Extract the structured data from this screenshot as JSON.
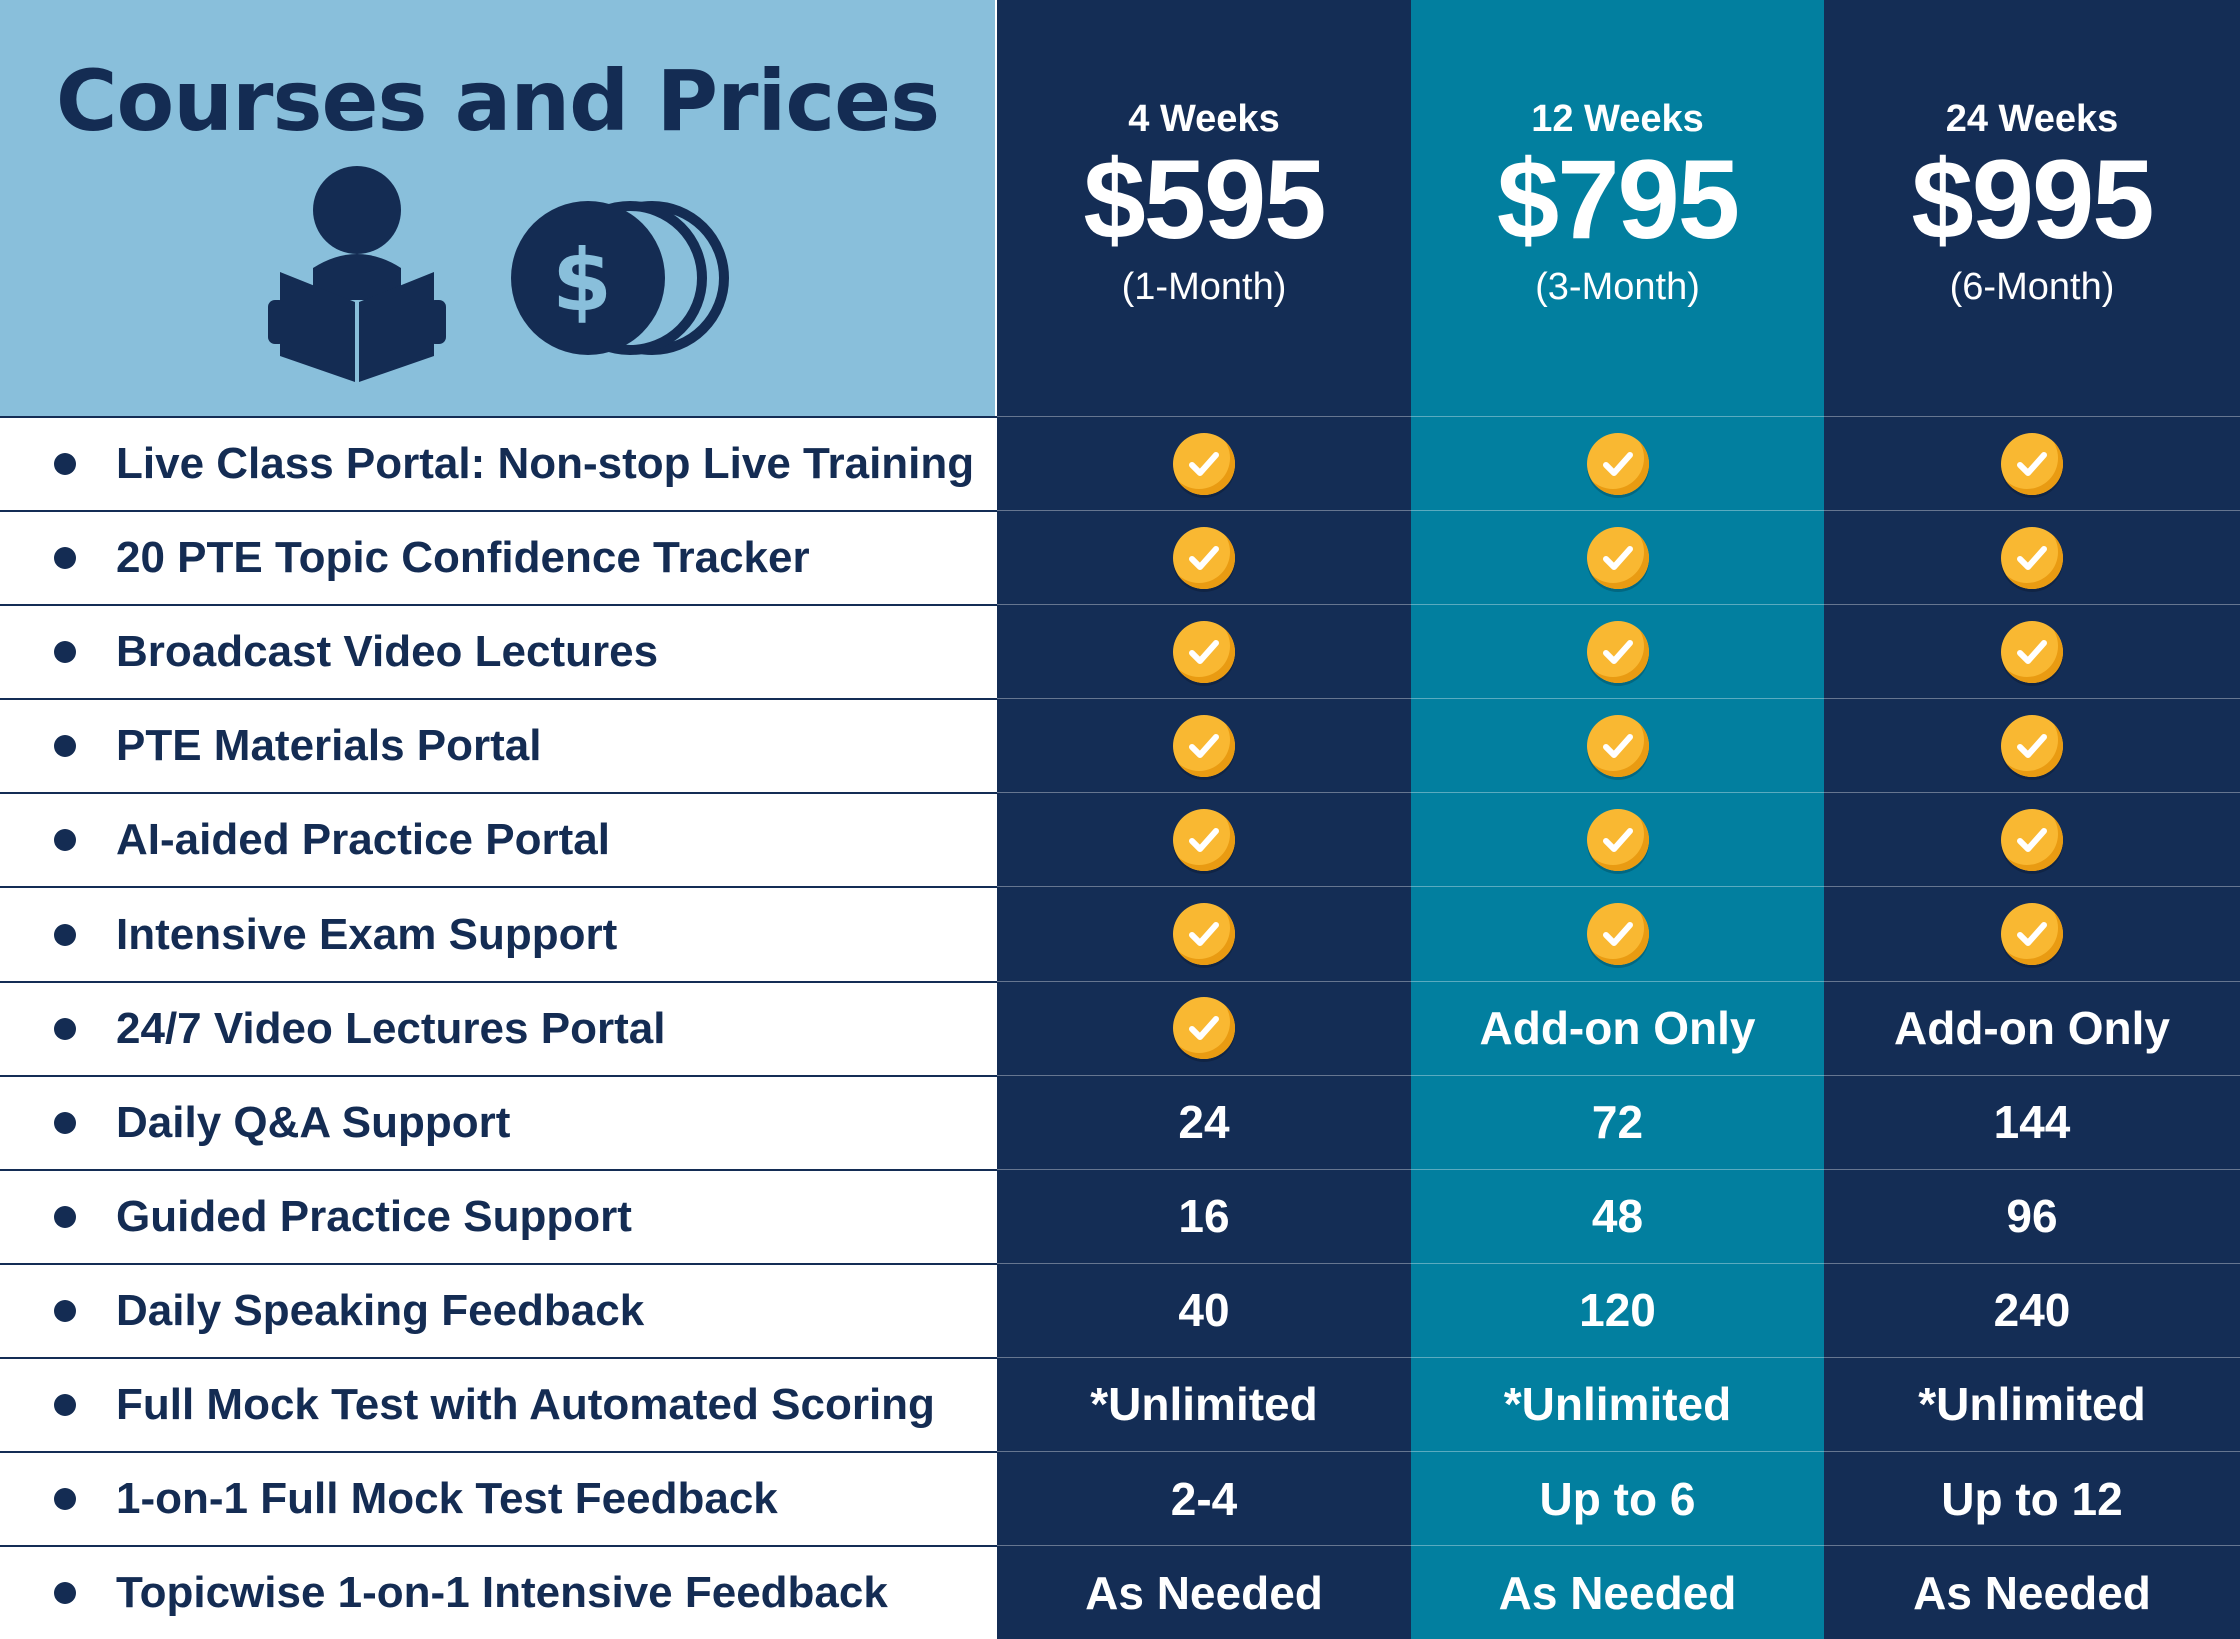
{
  "header": {
    "title": "Courses and Prices",
    "icons": [
      "person-reading-book-icon",
      "dollar-coins-icon"
    ],
    "colors": {
      "hero_bg": "#89bfdb",
      "navy": "#142d55",
      "teal": "#027f9f",
      "check": "#f9b832"
    }
  },
  "plans": [
    {
      "duration": "4 Weeks",
      "price": "$595",
      "period": "(1-Month)"
    },
    {
      "duration": "12 Weeks",
      "price": "$795",
      "period": "(3-Month)"
    },
    {
      "duration": "24 Weeks",
      "price": "$995",
      "period": "(6-Month)"
    }
  ],
  "features": [
    {
      "label": "Live Class Portal: Non-stop Live Training",
      "values": [
        "check",
        "check",
        "check"
      ]
    },
    {
      "label": "20 PTE Topic Confidence Tracker",
      "values": [
        "check",
        "check",
        "check"
      ]
    },
    {
      "label": "Broadcast Video Lectures",
      "values": [
        "check",
        "check",
        "check"
      ]
    },
    {
      "label": "PTE Materials Portal",
      "values": [
        "check",
        "check",
        "check"
      ]
    },
    {
      "label": "AI-aided Practice Portal",
      "values": [
        "check",
        "check",
        "check"
      ]
    },
    {
      "label": "Intensive Exam Support",
      "values": [
        "check",
        "check",
        "check"
      ]
    },
    {
      "label": "24/7 Video Lectures Portal",
      "values": [
        "check",
        "Add-on Only",
        "Add-on Only"
      ]
    },
    {
      "label": "Daily Q&A Support",
      "values": [
        "24",
        "72",
        "144"
      ]
    },
    {
      "label": "Guided Practice Support",
      "values": [
        "16",
        "48",
        "96"
      ]
    },
    {
      "label": "Daily Speaking Feedback",
      "values": [
        "40",
        "120",
        "240"
      ]
    },
    {
      "label": "Full Mock Test with Automated Scoring",
      "values": [
        "*Unlimited",
        "*Unlimited",
        "*Unlimited"
      ]
    },
    {
      "label": "1-on-1 Full Mock Test Feedback",
      "values": [
        "2-4",
        "Up to 6",
        "Up to 12"
      ]
    },
    {
      "label": "Topicwise 1-on-1 Intensive Feedback",
      "values": [
        "As Needed",
        "As Needed",
        "As Needed"
      ]
    }
  ]
}
